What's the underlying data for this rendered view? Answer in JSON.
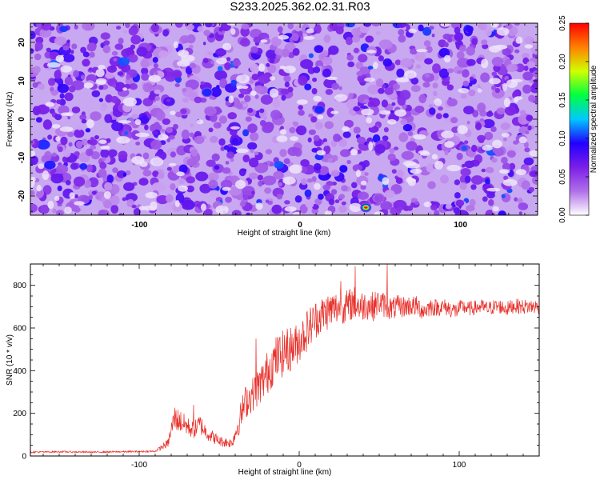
{
  "title": "S233.2025.362.02.31.R03",
  "chart_data": [
    {
      "type": "heatmap",
      "title": "S233.2025.362.02.31.R03",
      "xlabel": "Height of straight line (km)",
      "ylabel": "Frequency (Hz)",
      "xlim": [
        -168,
        148
      ],
      "ylim": [
        -25,
        25
      ],
      "x_ticks": [
        "-100",
        "0",
        "100"
      ],
      "x_tick_values": [
        -100,
        0,
        100
      ],
      "y_ticks": [
        "-20",
        "-10",
        "0",
        "10",
        "20"
      ],
      "y_tick_values": [
        -20,
        -10,
        0,
        10,
        20
      ],
      "colorbar": {
        "label": "Normalized spectral amplitude",
        "range": [
          0,
          0.25
        ],
        "ticks": [
          "0.00",
          "0.05",
          "0.10",
          "0.15",
          "0.20",
          "0.25"
        ],
        "tick_values": [
          0,
          0.05,
          0.1,
          0.15,
          0.2,
          0.25
        ],
        "colors": [
          "#ffffff",
          "#b070e8",
          "#7a1fe8",
          "#2200ff",
          "#00c8ff",
          "#00ff40",
          "#d0ff00",
          "#ff8000",
          "#ff0000"
        ]
      },
      "peaks": [
        {
          "x": 41,
          "y": -23,
          "value": 0.25
        },
        {
          "x": 12,
          "y": 2.5,
          "value": 0.12
        },
        {
          "x": -58,
          "y": 7,
          "value": 0.1
        }
      ],
      "grid": false
    },
    {
      "type": "line",
      "xlabel": "Height of straight line (km)",
      "ylabel": "SNR (10 * v/v)",
      "xlim": [
        -168,
        150
      ],
      "ylim": [
        0,
        900
      ],
      "x_ticks": [
        "-100",
        "0",
        "100"
      ],
      "x_tick_values": [
        -100,
        0,
        100
      ],
      "y_ticks": [
        "0",
        "200",
        "400",
        "600",
        "800"
      ],
      "y_tick_values": [
        0,
        200,
        400,
        600,
        800
      ],
      "color": "#e8302a",
      "grid": false,
      "series": [
        {
          "x": [
            -168,
            -150,
            -130,
            -110,
            -90,
            -82,
            -78,
            -74,
            -70,
            -66,
            -62,
            -58,
            -54,
            -50,
            -46,
            -42,
            -38,
            -34,
            -30,
            -26,
            -22,
            -18,
            -14,
            -10,
            -6,
            -2,
            2,
            6,
            10,
            14,
            18,
            22,
            26,
            30,
            34,
            38,
            42,
            46,
            50,
            54,
            58,
            62,
            66,
            70,
            74,
            78,
            82,
            86,
            90,
            94,
            98,
            102,
            106,
            110,
            114,
            118,
            122,
            126,
            130,
            134,
            138,
            142,
            146,
            150
          ],
          "y": [
            18,
            20,
            18,
            20,
            22,
            60,
            180,
            160,
            140,
            120,
            150,
            110,
            90,
            70,
            65,
            60,
            150,
            250,
            280,
            320,
            360,
            420,
            460,
            480,
            500,
            520,
            560,
            600,
            640,
            660,
            680,
            690,
            700,
            700,
            720,
            700,
            710,
            700,
            720,
            705,
            690,
            700,
            700,
            705,
            700,
            680,
            700,
            695,
            700,
            690,
            680,
            700,
            690,
            695,
            700,
            690,
            700,
            700,
            690,
            705,
            700,
            700,
            700,
            700
          ],
          "noise": [
            4,
            4,
            4,
            4,
            4,
            20,
            60,
            55,
            45,
            40,
            50,
            35,
            30,
            25,
            25,
            22,
            60,
            80,
            80,
            90,
            100,
            110,
            110,
            110,
            110,
            100,
            100,
            100,
            90,
            90,
            90,
            85,
            80,
            80,
            80,
            75,
            70,
            70,
            60,
            60,
            55,
            55,
            50,
            50,
            50,
            45,
            45,
            40,
            40,
            40,
            40,
            35,
            35,
            35,
            35,
            35,
            35,
            35,
            35,
            35,
            35,
            35,
            35,
            35
          ],
          "spikes": [
            {
              "x": 35,
              "y": 890
            },
            {
              "x": 55,
              "y": 900
            },
            {
              "x": 26,
              "y": 820
            },
            {
              "x": -27,
              "y": 550
            },
            {
              "x": -8,
              "y": 560
            },
            {
              "x": -66,
              "y": 240
            }
          ]
        }
      ]
    }
  ]
}
